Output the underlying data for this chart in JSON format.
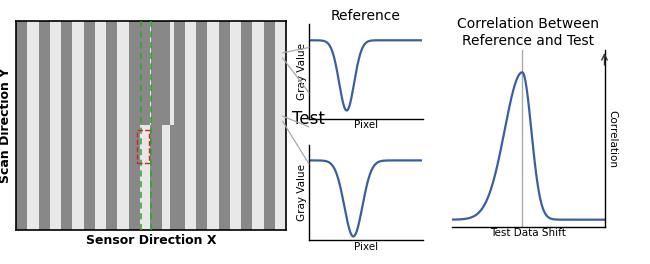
{
  "bg_color": "#ffffff",
  "stripe_dark": "#888888",
  "stripe_light": "#e8e8e8",
  "line_color": "#3a5fa0",
  "axis_color": "#333333",
  "green_dashed": "#22aa22",
  "red_dashed": "#cc2222",
  "connector_color": "#aaaaaa",
  "title_ref": "Reference",
  "title_test": "Test",
  "title_corr": "Correlation Between\nReference and Test",
  "xlabel_ref": "Pixel",
  "ylabel_ref": "Gray Value",
  "xlabel_test": "Pixel",
  "ylabel_test": "Gray Value",
  "xlabel_corr": "Test Data Shift",
  "ylabel_corr": "Correlation",
  "sensor_xlabel": "Sensor Direction X",
  "scan_ylabel": "Scan Direction Y",
  "fs_title": 9,
  "fs_panel_title": 10,
  "fs_label": 7.5,
  "fs_axis_label": 9
}
